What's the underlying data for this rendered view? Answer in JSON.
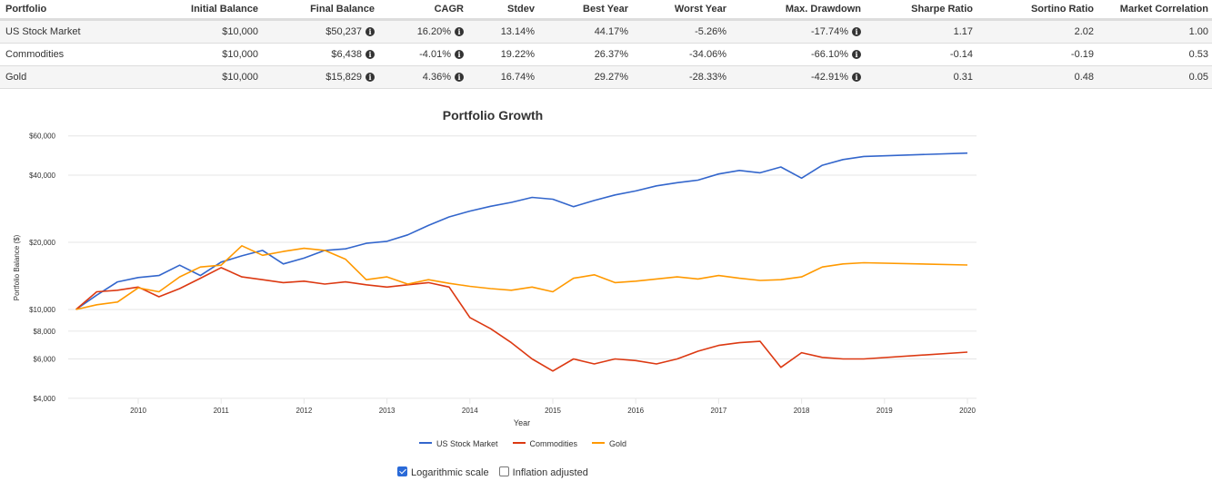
{
  "table": {
    "headers": [
      "Portfolio",
      "Initial Balance",
      "Final Balance",
      "CAGR",
      "Stdev",
      "Best Year",
      "Worst Year",
      "Max. Drawdown",
      "Sharpe Ratio",
      "Sortino Ratio",
      "Market Correlation"
    ],
    "rows": [
      {
        "portfolio": "US Stock Market",
        "initial": "$10,000",
        "final": "$50,237",
        "cagr": "16.20%",
        "stdev": "13.14%",
        "best": "44.17%",
        "worst": "-5.26%",
        "drawdown": "-17.74%",
        "sharpe": "1.17",
        "sortino": "2.02",
        "correlation": "1.00"
      },
      {
        "portfolio": "Commodities",
        "initial": "$10,000",
        "final": "$6,438",
        "cagr": "-4.01%",
        "stdev": "19.22%",
        "best": "26.37%",
        "worst": "-34.06%",
        "drawdown": "-66.10%",
        "sharpe": "-0.14",
        "sortino": "-0.19",
        "correlation": "0.53"
      },
      {
        "portfolio": "Gold",
        "initial": "$10,000",
        "final": "$15,829",
        "cagr": "4.36%",
        "stdev": "16.74%",
        "best": "29.27%",
        "worst": "-28.33%",
        "drawdown": "-42.91%",
        "sharpe": "0.31",
        "sortino": "0.48",
        "correlation": "0.05"
      }
    ],
    "info_icon": "info-circle-icon"
  },
  "options": {
    "log_scale_label": "Logarithmic scale",
    "log_scale_checked": true,
    "inflation_label": "Inflation adjusted",
    "inflation_checked": false
  },
  "chart_data": {
    "type": "line",
    "title": "Portfolio Growth",
    "xlabel": "Year",
    "ylabel": "Portfolio Balance ($)",
    "yscale": "log",
    "ylim": [
      4000,
      60000
    ],
    "xlim": [
      2009.25,
      2020.0
    ],
    "yticks": [
      4000,
      6000,
      8000,
      10000,
      20000,
      40000,
      60000
    ],
    "ytick_labels": [
      "$4,000",
      "$6,000",
      "$8,000",
      "$10,000",
      "$20,000",
      "$40,000",
      "$60,000"
    ],
    "xticks": [
      2010,
      2011,
      2012,
      2013,
      2014,
      2015,
      2016,
      2017,
      2018,
      2019,
      2020
    ],
    "xtick_labels": [
      "2010",
      "2011",
      "2012",
      "2013",
      "2014",
      "2015",
      "2016",
      "2017",
      "2018",
      "2019",
      "2020"
    ],
    "grid": true,
    "legend": "bottom",
    "x_start": 2009.25,
    "x_step": 0.25,
    "series": [
      {
        "name": "US Stock Market",
        "color": "#3366cc",
        "values": [
          10000,
          11600,
          13300,
          13900,
          14200,
          15800,
          14200,
          16300,
          17400,
          18400,
          16000,
          17000,
          18400,
          18700,
          19800,
          20200,
          21600,
          23800,
          26000,
          27600,
          29000,
          30200,
          31800,
          31200,
          28900,
          30800,
          32600,
          34000,
          35800,
          37000,
          38000,
          40500,
          42000,
          41000,
          43500,
          38800,
          44300,
          47000,
          48500,
          50237
        ]
      },
      {
        "name": "Commodities",
        "color": "#dc3912",
        "values": [
          10000,
          12000,
          12200,
          12600,
          11400,
          12400,
          13800,
          15400,
          14000,
          13600,
          13200,
          13400,
          13000,
          13300,
          12900,
          12600,
          12900,
          13200,
          12600,
          9200,
          8200,
          7100,
          6000,
          5300,
          6000,
          5700,
          6000,
          5900,
          5700,
          6000,
          6500,
          6900,
          7100,
          7200,
          5500,
          6400,
          6100,
          6000,
          6000,
          6438
        ]
      },
      {
        "name": "Gold",
        "color": "#ff9900",
        "values": [
          10000,
          10500,
          10800,
          12500,
          12000,
          14000,
          15500,
          15800,
          19300,
          17500,
          18200,
          18800,
          18400,
          16800,
          13600,
          14000,
          13000,
          13600,
          13100,
          12700,
          12400,
          12200,
          12600,
          12000,
          13800,
          14300,
          13200,
          13400,
          13700,
          14000,
          13700,
          14200,
          13800,
          13500,
          13600,
          14000,
          15500,
          16000,
          16200,
          15829
        ]
      }
    ]
  }
}
